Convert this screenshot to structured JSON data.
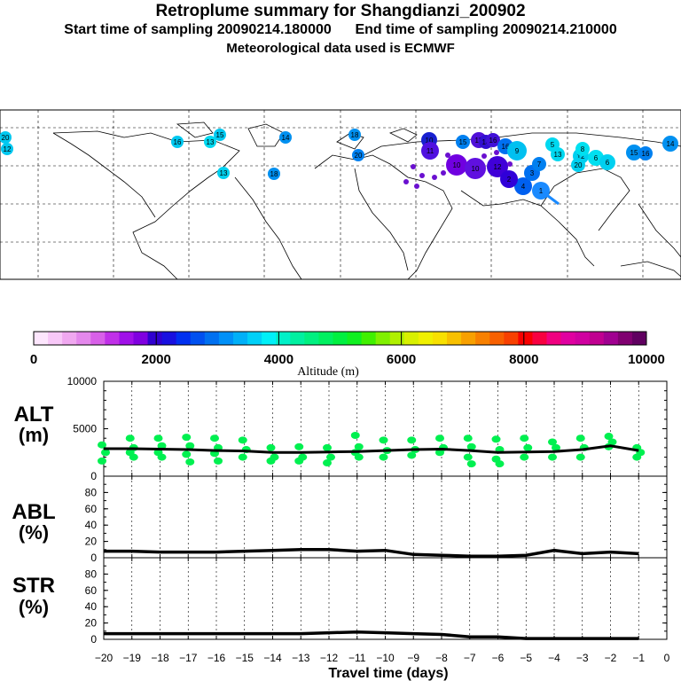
{
  "header": {
    "title": "Retroplume summary for Shangdianzi_200902",
    "start_label": "Start time of sampling 20090214.180000",
    "end_label": "End time of sampling 20090214.210000",
    "met_label": "Meteorological data used is ECMWF"
  },
  "colorbar": {
    "label": "Altitude  (m)",
    "tick_labels": [
      "0",
      "2000",
      "4000",
      "6000",
      "8000",
      "10000"
    ],
    "colors": [
      "#fde6fd",
      "#f8c8f8",
      "#f0a8f0",
      "#e488ec",
      "#d860e8",
      "#c030e8",
      "#a010e8",
      "#8000e0",
      "#3000d0",
      "#1810e0",
      "#0030f0",
      "#0050f0",
      "#0070f0",
      "#0090f8",
      "#00b0f8",
      "#00d0f8",
      "#00f0f8",
      "#00f0c8",
      "#00f0a0",
      "#00f080",
      "#00f060",
      "#00f040",
      "#10f020",
      "#40f000",
      "#80f000",
      "#b0f000",
      "#d8f000",
      "#f0f000",
      "#f8e000",
      "#f8c000",
      "#f8a000",
      "#f88000",
      "#f86000",
      "#f84000",
      "#f80000",
      "#f80040",
      "#f00080",
      "#e000a0",
      "#d000a0",
      "#c00090",
      "#a00090",
      "#800070",
      "#600060"
    ]
  },
  "icons": {
    "map_marker_legend": "circle-marker",
    "route_color": "#1a8aff"
  },
  "map_markers": [
    "20",
    "12",
    "15",
    "16",
    "14",
    "13",
    "13",
    "18",
    "20",
    "18",
    "10",
    "15",
    "15",
    "14",
    "16",
    "16",
    "5",
    "13",
    "12",
    "8",
    "20",
    "6",
    "6",
    "15",
    "16",
    "14",
    "11",
    "10",
    "10",
    "12",
    "9",
    "1",
    "4",
    "2",
    "3",
    "7"
  ],
  "chart_data": [
    {
      "type": "scatter",
      "name": "ALT",
      "ylabel": "ALT\n(m)",
      "ylabel_lines": [
        "ALT",
        "(m)"
      ],
      "xlim": [
        -20,
        0
      ],
      "ylim": [
        0,
        10000
      ],
      "yticks": [
        "10000",
        "5000",
        "0"
      ],
      "point_color": "#00f050",
      "line_color": "#000000",
      "points": [
        {
          "x": -20,
          "y": [
            3300,
            2500,
            1600
          ]
        },
        {
          "x": -19,
          "y": [
            4000,
            3000,
            2500,
            2000
          ]
        },
        {
          "x": -18,
          "y": [
            4000,
            3200,
            2500,
            2000
          ]
        },
        {
          "x": -17,
          "y": [
            4100,
            3200,
            2300,
            1500
          ]
        },
        {
          "x": -16,
          "y": [
            4000,
            3000,
            2400,
            1600
          ]
        },
        {
          "x": -15,
          "y": [
            3800,
            2800,
            2000
          ]
        },
        {
          "x": -14,
          "y": [
            3000,
            2000,
            1600
          ]
        },
        {
          "x": -13,
          "y": [
            3100,
            2000,
            1600
          ]
        },
        {
          "x": -12,
          "y": [
            3000,
            2000,
            1400
          ]
        },
        {
          "x": -11,
          "y": [
            4300,
            3100,
            2500,
            2000
          ]
        },
        {
          "x": -10,
          "y": [
            3800,
            2700,
            2000
          ]
        },
        {
          "x": -9,
          "y": [
            3800,
            2800,
            2200
          ]
        },
        {
          "x": -8,
          "y": [
            4000,
            3000,
            2500
          ]
        },
        {
          "x": -7,
          "y": [
            4000,
            3100,
            2000,
            1300
          ]
        },
        {
          "x": -6,
          "y": [
            3900,
            2800,
            1800,
            1300
          ]
        },
        {
          "x": -5,
          "y": [
            4000,
            3000,
            2000
          ]
        },
        {
          "x": -4,
          "y": [
            3600,
            3000,
            2000
          ]
        },
        {
          "x": -3,
          "y": [
            4000,
            3000,
            2000
          ]
        },
        {
          "x": -2,
          "y": [
            4200,
            3600,
            3100
          ]
        },
        {
          "x": -1,
          "y": [
            3000,
            2500,
            2000
          ]
        }
      ],
      "line": {
        "x": [
          -20,
          -19,
          -18,
          -17,
          -16,
          -15,
          -14,
          -13,
          -12,
          -11,
          -10,
          -9,
          -8,
          -7,
          -6,
          -5,
          -4,
          -3,
          -2,
          -1
        ],
        "y": [
          2900,
          2900,
          2850,
          2800,
          2700,
          2650,
          2500,
          2500,
          2550,
          2600,
          2700,
          2800,
          2850,
          2700,
          2500,
          2550,
          2600,
          2800,
          3200,
          2700
        ]
      }
    },
    {
      "type": "line",
      "name": "ABL",
      "ylabel_lines": [
        "ABL",
        "(%)"
      ],
      "xlim": [
        -20,
        0
      ],
      "ylim": [
        0,
        100
      ],
      "yticks": [
        "80",
        "60",
        "40",
        "20",
        "0"
      ],
      "x": [
        -20,
        -19,
        -18,
        -17,
        -16,
        -15,
        -14,
        -13,
        -12,
        -11,
        -10,
        -9,
        -8,
        -7,
        -6,
        -5,
        -4,
        -3,
        -2,
        -1
      ],
      "y": [
        8,
        8,
        7,
        7,
        7,
        8,
        9,
        10,
        10,
        8,
        9,
        4,
        3,
        2,
        2,
        3,
        9,
        5,
        7,
        5
      ]
    },
    {
      "type": "line",
      "name": "STR",
      "ylabel_lines": [
        "STR",
        "(%)"
      ],
      "xlim": [
        -20,
        0
      ],
      "ylim": [
        0,
        100
      ],
      "yticks": [
        "80",
        "60",
        "40",
        "20",
        "0"
      ],
      "x": [
        -20,
        -19,
        -18,
        -17,
        -16,
        -15,
        -14,
        -13,
        -12,
        -11,
        -10,
        -9,
        -8,
        -7,
        -6,
        -5,
        -4,
        -3,
        -2,
        -1
      ],
      "y": [
        7,
        7,
        7,
        7,
        7,
        7,
        7,
        7,
        8,
        9,
        8,
        7,
        6,
        3,
        3,
        1,
        1,
        1,
        1,
        1
      ]
    }
  ],
  "x_axis": {
    "tick_labels": [
      "−20",
      "−19",
      "−18",
      "−17",
      "−16",
      "−15",
      "−14",
      "−13",
      "−12",
      "−11",
      "−10",
      "−9",
      "−8",
      "−7",
      "−6",
      "−5",
      "−4",
      "−3",
      "−2",
      "−1",
      "0"
    ],
    "label": "Travel time (days)"
  }
}
